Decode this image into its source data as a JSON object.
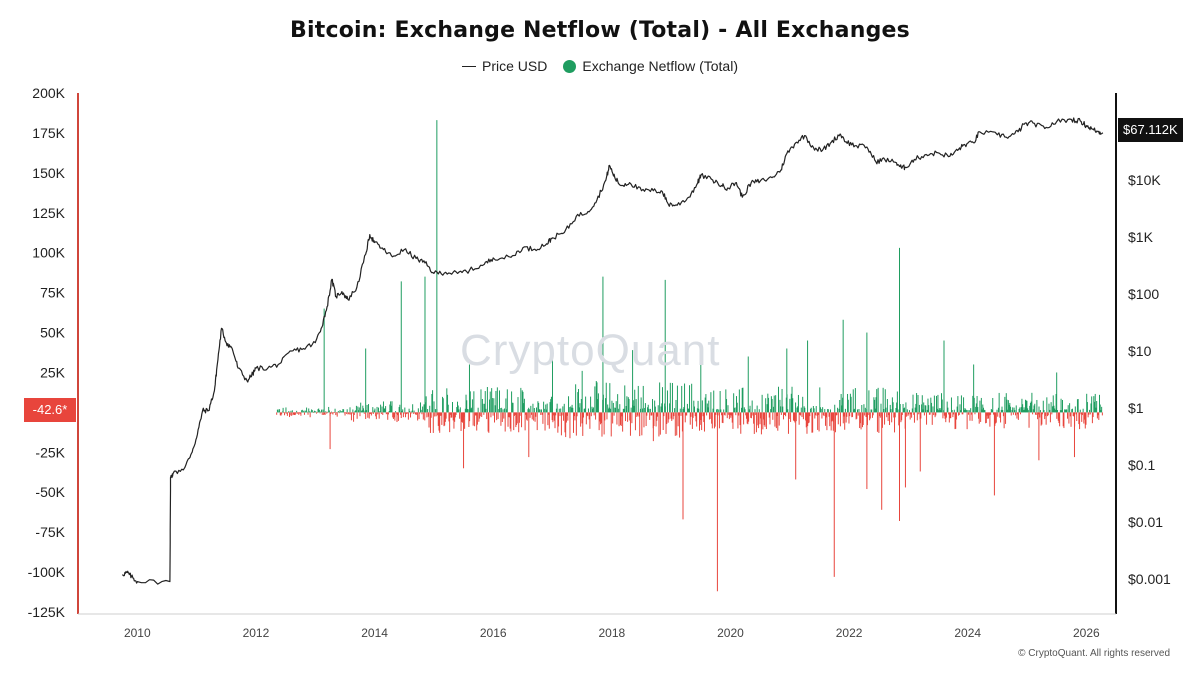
{
  "chart_data": {
    "type": "bar+line",
    "title": "Bitcoin: Exchange Netflow (Total) - All Exchanges",
    "legend": [
      {
        "name": "Price USD",
        "type": "line",
        "color": "#222222"
      },
      {
        "name": "Exchange Netflow (Total)",
        "type": "bar",
        "color": "#1f9d60"
      }
    ],
    "legend_position": "top-center",
    "left_axis": {
      "ylim": [
        -125000,
        200000
      ],
      "ticks": [
        "200K",
        "175K",
        "150K",
        "125K",
        "100K",
        "75K",
        "50K",
        "25K",
        "-25K",
        "-50K",
        "-75K",
        "-100K",
        "-125K"
      ],
      "tick_values": [
        200000,
        175000,
        150000,
        125000,
        100000,
        75000,
        50000,
        25000,
        -25000,
        -50000,
        -75000,
        -100000,
        -125000
      ]
    },
    "right_axis": {
      "scale": "log",
      "ticks": [
        "$10K",
        "$1K",
        "$100",
        "$10",
        "$1",
        "$0.1",
        "$0.01",
        "$0.001"
      ],
      "tick_values": [
        10000,
        1000,
        100,
        10,
        1,
        0.1,
        0.01,
        0.001
      ]
    },
    "x_axis": {
      "xlim": [
        2009.0,
        2026.5
      ],
      "ticks": [
        "2010",
        "2012",
        "2014",
        "2016",
        "2018",
        "2020",
        "2022",
        "2024",
        "2026"
      ],
      "tick_values": [
        2010,
        2012,
        2014,
        2016,
        2018,
        2020,
        2022,
        2024,
        2026
      ]
    },
    "grid": false,
    "price_series": {
      "name": "Price USD",
      "points": [
        [
          2009.75,
          0.0012
        ],
        [
          2009.83,
          0.0013
        ],
        [
          2009.9,
          0.0011
        ],
        [
          2010.0,
          0.0009
        ],
        [
          2010.55,
          0.0009
        ],
        [
          2010.56,
          0.06
        ],
        [
          2010.6,
          0.07
        ],
        [
          2010.8,
          0.09
        ],
        [
          2010.9,
          0.15
        ],
        [
          2011.0,
          0.3
        ],
        [
          2011.1,
          0.9
        ],
        [
          2011.2,
          0.9
        ],
        [
          2011.3,
          2
        ],
        [
          2011.35,
          6
        ],
        [
          2011.42,
          25
        ],
        [
          2011.5,
          14
        ],
        [
          2011.6,
          11
        ],
        [
          2011.7,
          5
        ],
        [
          2011.85,
          3
        ],
        [
          2011.95,
          4
        ],
        [
          2012.0,
          5
        ],
        [
          2012.2,
          5
        ],
        [
          2012.4,
          6
        ],
        [
          2012.6,
          10
        ],
        [
          2012.8,
          11
        ],
        [
          2013.0,
          14
        ],
        [
          2013.1,
          25
        ],
        [
          2013.2,
          60
        ],
        [
          2013.28,
          180
        ],
        [
          2013.35,
          90
        ],
        [
          2013.45,
          110
        ],
        [
          2013.55,
          80
        ],
        [
          2013.7,
          130
        ],
        [
          2013.85,
          500
        ],
        [
          2013.92,
          1100
        ],
        [
          2014.0,
          800
        ],
        [
          2014.15,
          600
        ],
        [
          2014.3,
          450
        ],
        [
          2014.5,
          600
        ],
        [
          2014.7,
          420
        ],
        [
          2014.85,
          350
        ],
        [
          2015.0,
          230
        ],
        [
          2015.2,
          240
        ],
        [
          2015.4,
          230
        ],
        [
          2015.6,
          260
        ],
        [
          2015.85,
          330
        ],
        [
          2016.0,
          430
        ],
        [
          2016.3,
          440
        ],
        [
          2016.5,
          650
        ],
        [
          2016.7,
          610
        ],
        [
          2016.9,
          760
        ],
        [
          2017.0,
          970
        ],
        [
          2017.2,
          1200
        ],
        [
          2017.4,
          2300
        ],
        [
          2017.6,
          2800
        ],
        [
          2017.75,
          4500
        ],
        [
          2017.9,
          10000
        ],
        [
          2017.96,
          18000
        ],
        [
          2018.05,
          11000
        ],
        [
          2018.15,
          8000
        ],
        [
          2018.3,
          9000
        ],
        [
          2018.5,
          6500
        ],
        [
          2018.7,
          6500
        ],
        [
          2018.85,
          6300
        ],
        [
          2018.95,
          3800
        ],
        [
          2019.1,
          3600
        ],
        [
          2019.3,
          5000
        ],
        [
          2019.45,
          9000
        ],
        [
          2019.5,
          12000
        ],
        [
          2019.7,
          10000
        ],
        [
          2019.85,
          8000
        ],
        [
          2019.95,
          7200
        ],
        [
          2020.1,
          9000
        ],
        [
          2020.2,
          5000
        ],
        [
          2020.35,
          9000
        ],
        [
          2020.5,
          9500
        ],
        [
          2020.7,
          11000
        ],
        [
          2020.85,
          15000
        ],
        [
          2020.95,
          29000
        ],
        [
          2021.1,
          45000
        ],
        [
          2021.25,
          60000
        ],
        [
          2021.4,
          37000
        ],
        [
          2021.55,
          33000
        ],
        [
          2021.7,
          46000
        ],
        [
          2021.85,
          64000
        ],
        [
          2021.95,
          47000
        ],
        [
          2022.1,
          40000
        ],
        [
          2022.3,
          38000
        ],
        [
          2022.45,
          21000
        ],
        [
          2022.6,
          23000
        ],
        [
          2022.8,
          20000
        ],
        [
          2022.88,
          16500
        ],
        [
          2022.95,
          16700
        ],
        [
          2023.1,
          23000
        ],
        [
          2023.3,
          28000
        ],
        [
          2023.5,
          30000
        ],
        [
          2023.7,
          26000
        ],
        [
          2023.85,
          35000
        ],
        [
          2023.95,
          42000
        ],
        [
          2024.1,
          45000
        ],
        [
          2024.2,
          70000
        ],
        [
          2024.5,
          62000
        ],
        [
          2024.7,
          58000
        ],
        [
          2024.85,
          70000
        ],
        [
          2024.95,
          95000
        ],
        [
          2025.1,
          100000
        ],
        [
          2025.3,
          80000
        ],
        [
          2025.5,
          106000
        ],
        [
          2025.75,
          115000
        ],
        [
          2025.9,
          108000
        ],
        [
          2026.0,
          90000
        ],
        [
          2026.1,
          78000
        ],
        [
          2026.2,
          70000
        ],
        [
          2026.28,
          67112
        ]
      ]
    },
    "netflow_series": {
      "name": "Exchange Netflow (Total)",
      "positive_color": "#1f9d60",
      "negative_color": "#e8453c",
      "large_spikes": [
        [
          2013.15,
          65000
        ],
        [
          2013.85,
          40000
        ],
        [
          2014.45,
          82000
        ],
        [
          2014.85,
          85000
        ],
        [
          2015.05,
          183000
        ],
        [
          2015.6,
          30000
        ],
        [
          2017.0,
          40000
        ],
        [
          2017.5,
          26000
        ],
        [
          2017.85,
          85000
        ],
        [
          2018.35,
          39000
        ],
        [
          2018.9,
          83000
        ],
        [
          2019.5,
          43000
        ],
        [
          2020.3,
          35000
        ],
        [
          2020.95,
          40000
        ],
        [
          2021.3,
          45000
        ],
        [
          2021.9,
          58000
        ],
        [
          2022.3,
          50000
        ],
        [
          2022.85,
          103000
        ],
        [
          2023.6,
          45000
        ],
        [
          2024.1,
          30000
        ],
        [
          2025.5,
          25000
        ],
        [
          2013.25,
          -23000
        ],
        [
          2015.5,
          -35000
        ],
        [
          2016.6,
          -28000
        ],
        [
          2018.7,
          -18000
        ],
        [
          2019.2,
          -67000
        ],
        [
          2019.78,
          -112000
        ],
        [
          2021.1,
          -42000
        ],
        [
          2021.75,
          -103000
        ],
        [
          2022.3,
          -48000
        ],
        [
          2022.55,
          -61000
        ],
        [
          2022.85,
          -68000
        ],
        [
          2022.95,
          -47000
        ],
        [
          2023.2,
          -37000
        ],
        [
          2024.45,
          -52000
        ],
        [
          2025.2,
          -30000
        ],
        [
          2025.8,
          -28000
        ]
      ]
    },
    "current_values": {
      "netflow_label": "-42.6*",
      "price_label": "$67.112K"
    }
  },
  "legend_labels": {
    "price": "Price USD",
    "netflow": "Exchange Netflow (Total)"
  },
  "watermark": "CryptoQuant",
  "copyright": "© CryptoQuant. All rights reserved",
  "colors": {
    "price": "#222222",
    "positive": "#1f9d60",
    "negative": "#e8453c",
    "badge_red": "#e8453c",
    "badge_black": "#111111",
    "axis_red": "#d0463b"
  }
}
